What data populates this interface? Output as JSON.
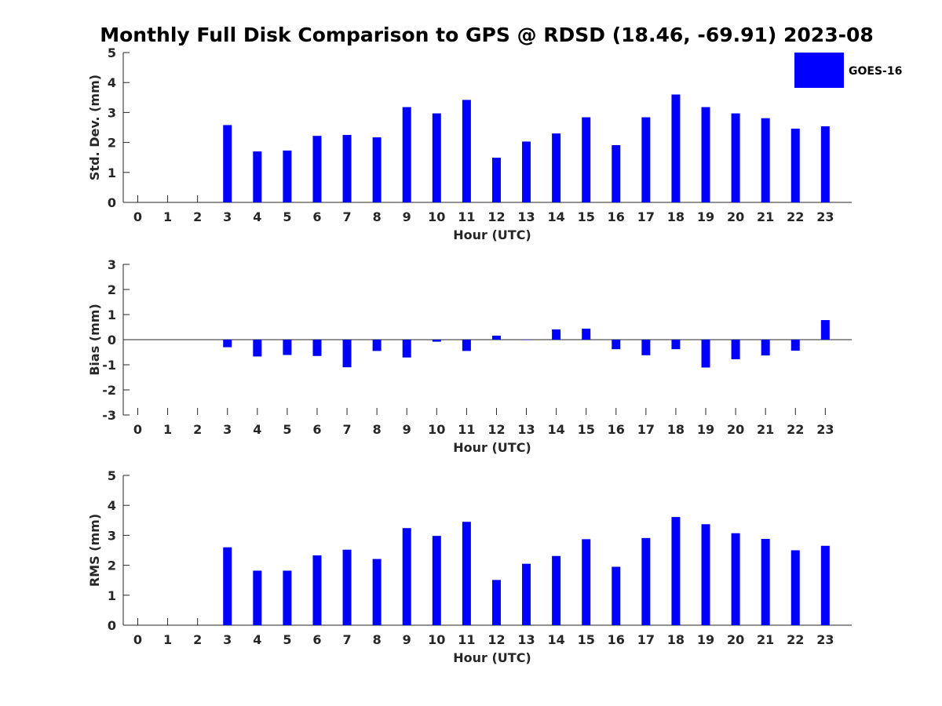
{
  "title": "Monthly Full Disk Comparison to GPS @ RDSD (18.46, -69.91) 2023-08",
  "legend": {
    "label": "GOES-16",
    "color": "#0000ff",
    "position": "top-right"
  },
  "chart_data": [
    {
      "type": "bar",
      "xlabel": "Hour (UTC)",
      "ylabel": "Std. Dev. (mm)",
      "ylim": [
        0,
        5
      ],
      "yticks": [
        0,
        1,
        2,
        3,
        4,
        5
      ],
      "categories": [
        0,
        1,
        2,
        3,
        4,
        5,
        6,
        7,
        8,
        9,
        10,
        11,
        12,
        13,
        14,
        15,
        16,
        17,
        18,
        19,
        20,
        21,
        22,
        23
      ],
      "series": [
        {
          "name": "GOES-16",
          "values": [
            null,
            null,
            null,
            2.58,
            1.7,
            1.73,
            2.22,
            2.25,
            2.17,
            3.18,
            2.97,
            3.42,
            1.49,
            2.03,
            2.3,
            2.84,
            1.91,
            2.84,
            3.6,
            3.18,
            2.97,
            2.81,
            2.46,
            2.54
          ]
        }
      ]
    },
    {
      "type": "bar",
      "xlabel": "Hour (UTC)",
      "ylabel": "Bias (mm)",
      "ylim": [
        -3,
        3
      ],
      "yticks": [
        -3,
        -2,
        -1,
        0,
        1,
        2,
        3
      ],
      "categories": [
        0,
        1,
        2,
        3,
        4,
        5,
        6,
        7,
        8,
        9,
        10,
        11,
        12,
        13,
        14,
        15,
        16,
        17,
        18,
        19,
        20,
        21,
        22,
        23
      ],
      "series": [
        {
          "name": "GOES-16",
          "values": [
            null,
            null,
            null,
            -0.3,
            -0.67,
            -0.61,
            -0.65,
            -1.1,
            -0.45,
            -0.71,
            -0.08,
            -0.45,
            0.16,
            0.0,
            0.41,
            0.44,
            -0.38,
            -0.62,
            -0.38,
            -1.11,
            -0.78,
            -0.63,
            -0.44,
            0.78
          ]
        }
      ]
    },
    {
      "type": "bar",
      "xlabel": "Hour (UTC)",
      "ylabel": "RMS (mm)",
      "ylim": [
        0,
        5
      ],
      "yticks": [
        0,
        1,
        2,
        3,
        4,
        5
      ],
      "categories": [
        0,
        1,
        2,
        3,
        4,
        5,
        6,
        7,
        8,
        9,
        10,
        11,
        12,
        13,
        14,
        15,
        16,
        17,
        18,
        19,
        20,
        21,
        22,
        23
      ],
      "series": [
        {
          "name": "GOES-16",
          "values": [
            null,
            null,
            null,
            2.6,
            1.82,
            1.82,
            2.33,
            2.52,
            2.21,
            3.24,
            2.98,
            3.45,
            1.51,
            2.05,
            2.31,
            2.87,
            1.95,
            2.91,
            3.61,
            3.37,
            3.07,
            2.88,
            2.5,
            2.65
          ]
        }
      ]
    }
  ]
}
